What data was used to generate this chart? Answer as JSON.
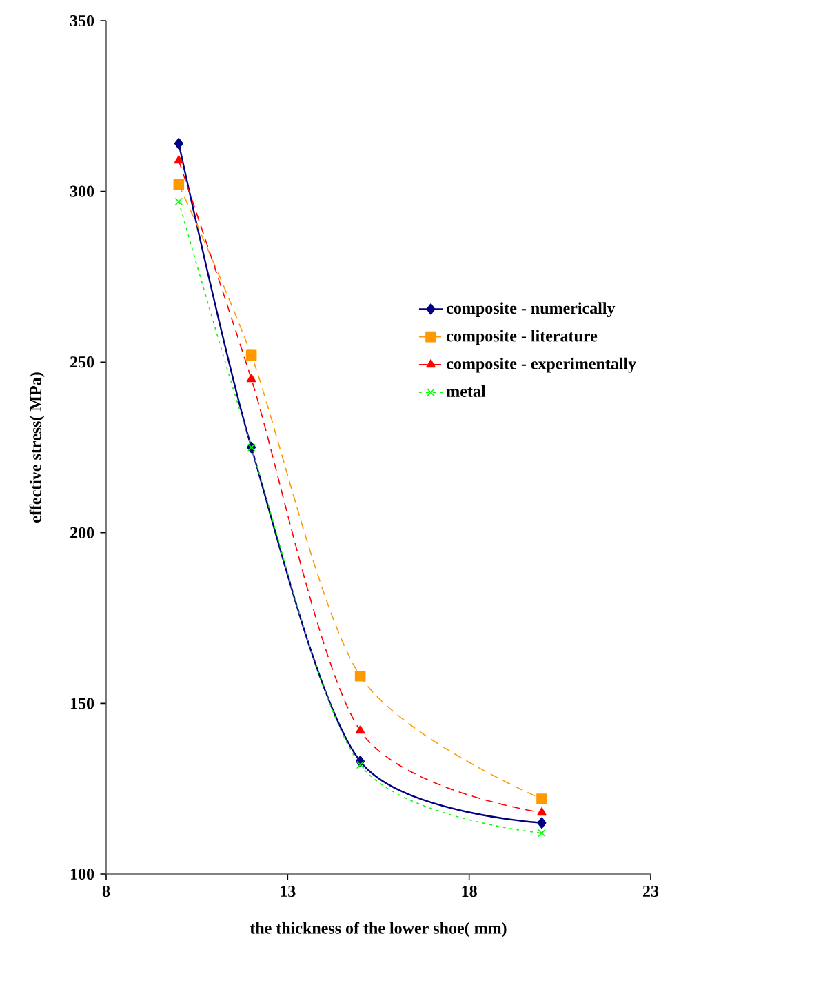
{
  "chart_data": {
    "type": "line",
    "xlabel": "the thickness of the lower shoe( mm)",
    "ylabel": "effective stress( MPa)",
    "xlim": [
      8,
      23
    ],
    "ylim": [
      100,
      350
    ],
    "xticks": [
      8,
      13,
      18,
      23
    ],
    "yticks": [
      100,
      150,
      200,
      250,
      300,
      350
    ],
    "legend": "right",
    "grid": false,
    "series": [
      {
        "name": "composite - numerically",
        "color": "#000080",
        "marker": "diamond",
        "line_style": "solid",
        "x": [
          10,
          12,
          15,
          20
        ],
        "values": [
          314,
          225,
          133,
          115
        ]
      },
      {
        "name": "composite - literature",
        "color": "#ff9900",
        "marker": "square",
        "line_style": "dashed",
        "x": [
          10,
          12,
          15,
          20
        ],
        "values": [
          302,
          252,
          158,
          122
        ]
      },
      {
        "name": "composite - experimentally",
        "color": "#ff0000",
        "marker": "triangle",
        "line_style": "dashed",
        "x": [
          10,
          12,
          15,
          20
        ],
        "values": [
          309,
          245,
          142,
          118
        ]
      },
      {
        "name": "metal",
        "color": "#00ff00",
        "marker": "cross",
        "line_style": "dotted",
        "x": [
          10,
          12,
          15,
          20
        ],
        "values": [
          297,
          225,
          132,
          112
        ]
      }
    ]
  }
}
